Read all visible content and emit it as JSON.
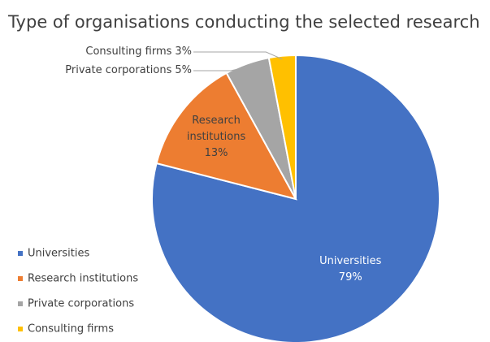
{
  "chart_data": {
    "type": "pie",
    "title": "Type of organisations conducting the selected research",
    "categories": [
      "Universities",
      "Research institutions",
      "Private corporations",
      "Consulting firms"
    ],
    "values": [
      79,
      13,
      5,
      3
    ],
    "value_labels": [
      "79%",
      "13%",
      "5%",
      "3%"
    ],
    "colors": [
      "#4472c4",
      "#ed7d31",
      "#a5a5a5",
      "#ffc000"
    ],
    "legend": "left"
  }
}
